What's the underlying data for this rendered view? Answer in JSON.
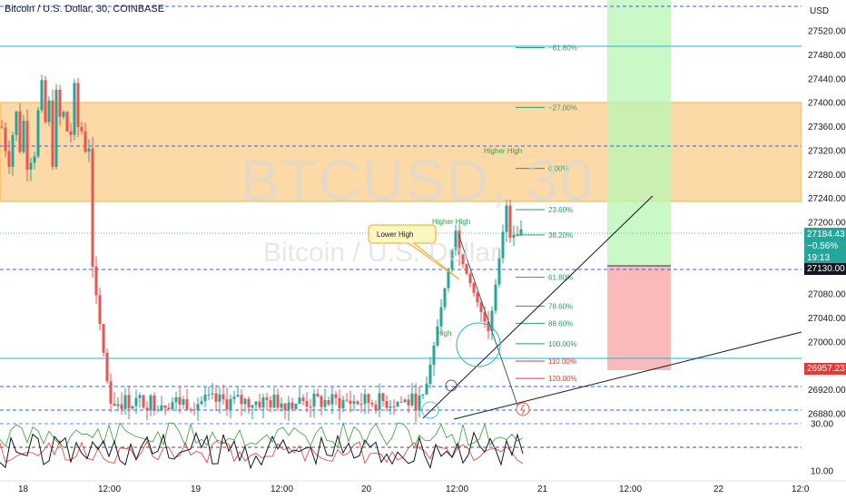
{
  "header": {
    "title": "Bitcoin / U.S. Dollar, 30, COINBASE"
  },
  "watermark": {
    "symbol": "BTCUSD, 30",
    "name": "Bitcoin / U.S. Dollar"
  },
  "colors": {
    "up": "#26a69a",
    "down": "#ef5350",
    "zone_orange": "#fbd49a",
    "zone_green": "#c7f5c4",
    "zone_red": "#f9b6b6",
    "fib": "#2a9d6a"
  },
  "price_axis": {
    "currency": "USD",
    "ticks": [
      "27520.00",
      "27480.00",
      "27440.00",
      "27400.00",
      "27360.00",
      "27320.00",
      "27280.00",
      "27240.00",
      "27200.00",
      "27080.00",
      "27040.00",
      "27000.00",
      "26920.00",
      "26880.00"
    ],
    "last_price": "27184.43",
    "change": "−0.56%",
    "countdown": "19:13",
    "level_label": "27130.00",
    "stop_label": "26957.23"
  },
  "time_axis": [
    "18",
    "12:00",
    "19",
    "12:00",
    "20",
    "12:00",
    "21",
    "12:00",
    "22",
    "12:0"
  ],
  "oscillator": {
    "ticks": [
      "30.00",
      "10.00"
    ]
  },
  "fib_levels": [
    {
      "label": "−61.80%",
      "price": 27492
    },
    {
      "label": "−27.00%",
      "price": 27392
    },
    {
      "label": "0.00%",
      "price": 27290
    },
    {
      "label": "23.60%",
      "price": 27221
    },
    {
      "label": "38.20%",
      "price": 27179
    },
    {
      "label": "61.80%",
      "price": 27108
    },
    {
      "label": "78.60%",
      "price": 27060
    },
    {
      "label": "88.60%",
      "price": 27031
    },
    {
      "label": "100.00%",
      "price": 26997
    },
    {
      "label": "110.00%",
      "price": 26968
    },
    {
      "label": "120.00%",
      "price": 26939
    }
  ],
  "annotations": {
    "lower_high": "Lower High",
    "higher_high_1": "Higher High",
    "higher_high_2": "Higher High",
    "high": "High"
  },
  "chart_data": {
    "type": "candlestick",
    "title": "Bitcoin / U.S. Dollar, 30, COINBASE",
    "y_range": [
      26850,
      27560
    ],
    "price_levels": [
      {
        "price": 27555,
        "style": "dashed"
      },
      {
        "price": 27492,
        "style": "solid-cyan"
      },
      {
        "price": 27325,
        "style": "dashed"
      },
      {
        "price": 27130,
        "style": "dashed"
      },
      {
        "price": 26986,
        "style": "solid-cyan"
      },
      {
        "price": 26924,
        "style": "dashed"
      },
      {
        "price": 26886,
        "style": "dashed"
      }
    ],
    "zones": [
      {
        "type": "supply",
        "from": 27237,
        "to": 27400
      },
      {
        "type": "long_target",
        "from": 27130,
        "to": 27560
      },
      {
        "type": "long_stop",
        "from": 26957,
        "to": 27130
      }
    ]
  }
}
